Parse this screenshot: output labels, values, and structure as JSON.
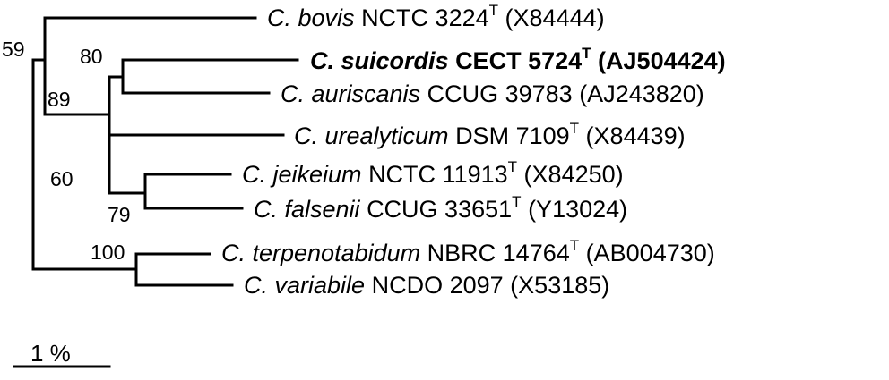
{
  "taxa": [
    {
      "species": "C. bovis",
      "strain": "NCTC 3224",
      "type_strain": true,
      "accession": "(X84444)",
      "bold": false
    },
    {
      "species": "C. suicordis",
      "strain": "CECT 5724",
      "type_strain": true,
      "accession": "(AJ504424)",
      "bold": true
    },
    {
      "species": "C. auriscanis",
      "strain": "CCUG 39783",
      "type_strain": false,
      "accession": "(AJ243820)",
      "bold": false
    },
    {
      "species": "C. urealyticum",
      "strain": "DSM 7109",
      "type_strain": true,
      "accession": "(X84439)",
      "bold": false
    },
    {
      "species": "C. jeikeium",
      "strain": "NCTC 11913",
      "type_strain": true,
      "accession": "(X84250)",
      "bold": false
    },
    {
      "species": "C. falsenii",
      "strain": "CCUG 33651",
      "type_strain": true,
      "accession": "(Y13024)",
      "bold": false
    },
    {
      "species": "C. terpenotabidum",
      "strain": "NBRC 14764",
      "type_strain": true,
      "accession": "(AB004730)",
      "bold": false
    },
    {
      "species": "C. variabile",
      "strain": "NCDO 2097",
      "type_strain": false,
      "accession": "(X53185)",
      "bold": false
    }
  ],
  "type_mark": "T",
  "bootstrap": [
    {
      "node": "bovis-group",
      "value": "59"
    },
    {
      "node": "suicordis-auriscanis",
      "value": "80"
    },
    {
      "node": "suicordis-urealyticum",
      "value": "89"
    },
    {
      "node": "urealyticum-group",
      "value": "60"
    },
    {
      "node": "jeikeium-falsenii",
      "value": "79"
    },
    {
      "node": "terpenotabidum-variabile",
      "value": "100"
    }
  ],
  "scale_bar": {
    "label": "1 %"
  }
}
